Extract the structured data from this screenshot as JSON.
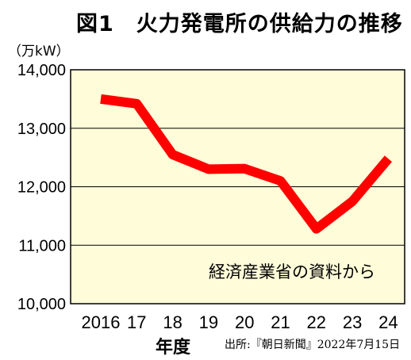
{
  "chart_data": {
    "type": "line",
    "title": "図1　火力発電所の供給力の推移",
    "unit_label": "（万kW）",
    "xlabel": "年度",
    "ylabel": "",
    "x": [
      "2016",
      "17",
      "18",
      "19",
      "20",
      "21",
      "22",
      "23",
      "24"
    ],
    "series": [
      {
        "values": [
          13500,
          13420,
          12550,
          12300,
          12310,
          12100,
          11280,
          11750,
          12480
        ]
      }
    ],
    "y_ticks": [
      "10,000",
      "11,000",
      "12,000",
      "13,000",
      "14,000"
    ],
    "ylim": [
      10000,
      14000
    ],
    "grid": true,
    "annotation": "経済産業省の資料から",
    "source": "出所:『朝日新聞』2022年7月15日",
    "colors": {
      "line": "#ff0000",
      "plot_bg": "#fffcd9",
      "grid": "#000000"
    }
  }
}
